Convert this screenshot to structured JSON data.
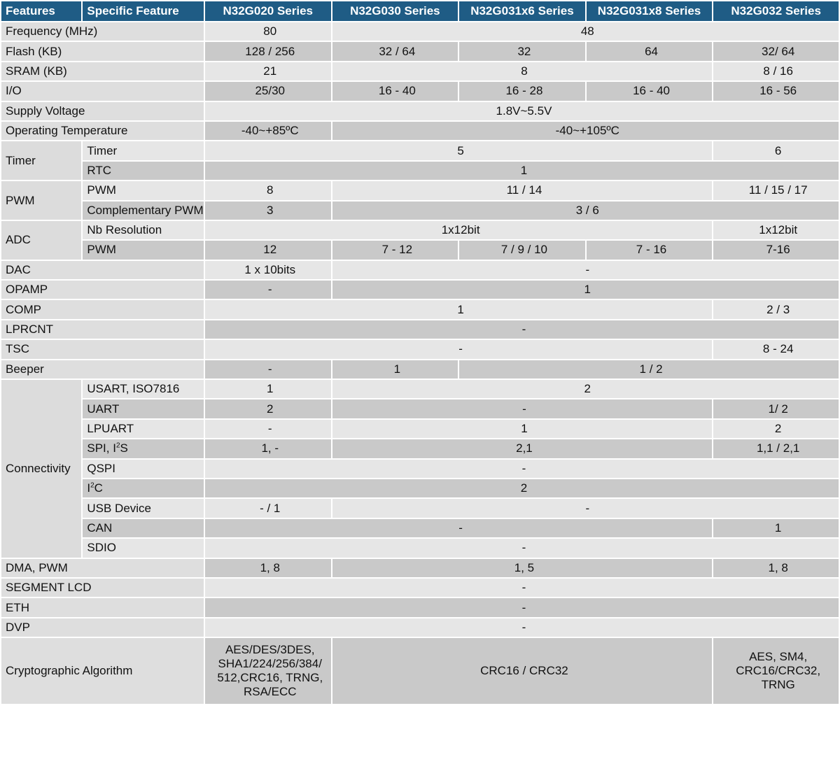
{
  "header": {
    "features": "Features",
    "specific": "Specific Feature",
    "s1": "N32G020 Series",
    "s2": "N32G030 Series",
    "s3": "N32G031x6 Series",
    "s4": "N32G031x8 Series",
    "s5": "N32G032 Series"
  },
  "rows": {
    "frequency": {
      "label": "Frequency (MHz)",
      "v1": "80",
      "v2": "48"
    },
    "flash": {
      "label": "Flash (KB)",
      "v1": "128 / 256",
      "v2": "32 / 64",
      "v3": "32",
      "v4": "64",
      "v5": "32/ 64"
    },
    "sram": {
      "label": "SRAM (KB)",
      "v1": "21",
      "v2": "8",
      "v3": "8 / 16"
    },
    "io": {
      "label": "I/O",
      "v1": "25/30",
      "v2": "16 - 40",
      "v3": "16 - 28",
      "v4": "16 - 40",
      "v5": "16 - 56"
    },
    "supply": {
      "label": "Supply Voltage",
      "v1": "1.8V~5.5V"
    },
    "temp": {
      "label": "Operating Temperature",
      "v1": "-40~+85ºC",
      "v2": "-40~+105ºC"
    },
    "timer": {
      "label": "Timer",
      "sub1": "Timer",
      "sub1_v1": "5",
      "sub1_v2": "6",
      "sub2": "RTC",
      "sub2_v1": "1"
    },
    "pwm": {
      "label": "PWM",
      "sub1": "PWM",
      "sub1_v1": "8",
      "sub1_v2": "11 / 14",
      "sub1_v3": "11 / 15 / 17",
      "sub2": "Complementary PWM",
      "sub2_v1": "3",
      "sub2_v2": "3 / 6"
    },
    "adc": {
      "label": "ADC",
      "sub1": "Nb Resolution",
      "sub1_v1": "1x12bit",
      "sub1_v2": "1x12bit",
      "sub2": "PWM",
      "sub2_v1": "12",
      "sub2_v2": "7 - 12",
      "sub2_v3": "7 / 9 / 10",
      "sub2_v4": "7 - 16",
      "sub2_v5": "7-16"
    },
    "dac": {
      "label": "DAC",
      "v1": "1 x 10bits",
      "v2": "-"
    },
    "opamp": {
      "label": "OPAMP",
      "v1": "-",
      "v2": "1"
    },
    "comp": {
      "label": "COMP",
      "v1": "1",
      "v2": "2 / 3"
    },
    "lprcnt": {
      "label": "LPRCNT",
      "v1": "-"
    },
    "tsc": {
      "label": "TSC",
      "v1": "-",
      "v2": "8 - 24"
    },
    "beeper": {
      "label": "Beeper",
      "v1": "-",
      "v2": "1",
      "v3": "1 / 2"
    },
    "connectivity": {
      "label": "Connectivity",
      "usart": {
        "label": "USART, ISO7816",
        "v1": "1",
        "v2": "2"
      },
      "uart": {
        "label": "UART",
        "v1": "2",
        "v2": "-",
        "v3": "1/ 2"
      },
      "lpuart": {
        "label": "LPUART",
        "v1": "-",
        "v2": "1",
        "v3": "2"
      },
      "spi": {
        "label_a": "SPI, I",
        "label_sup": "2",
        "label_b": "S",
        "v1": "1, -",
        "v2": "2,1",
        "v3": "1,1 / 2,1"
      },
      "qspi": {
        "label": "QSPI",
        "v1": "-"
      },
      "i2c": {
        "label_a": "I",
        "label_sup": "2",
        "label_b": "C",
        "v1": "2"
      },
      "usb": {
        "label": "USB Device",
        "v1": "- / 1",
        "v2": "-"
      },
      "can": {
        "label": "CAN",
        "v1": "-",
        "v2": "1"
      },
      "sdio": {
        "label": "SDIO",
        "v1": "-"
      }
    },
    "dma": {
      "label": "DMA, PWM",
      "v1": "1, 8",
      "v2": "1, 5",
      "v3": "1, 8"
    },
    "segment": {
      "label": "SEGMENT LCD",
      "v1": "-"
    },
    "eth": {
      "label": "ETH",
      "v1": "-"
    },
    "dvp": {
      "label": "DVP",
      "v1": "-"
    },
    "crypto": {
      "label": "Cryptographic Algorithm",
      "v1_l1": "AES/DES/3DES,",
      "v1_l2": "SHA1/224/256/384/",
      "v1_l3": "512,CRC16, TRNG,",
      "v1_l4": "RSA/ECC",
      "v2": "CRC16 / CRC32",
      "v3_l1": "AES, SM4,",
      "v3_l2": "CRC16/CRC32,",
      "v3_l3": "TRNG"
    }
  }
}
